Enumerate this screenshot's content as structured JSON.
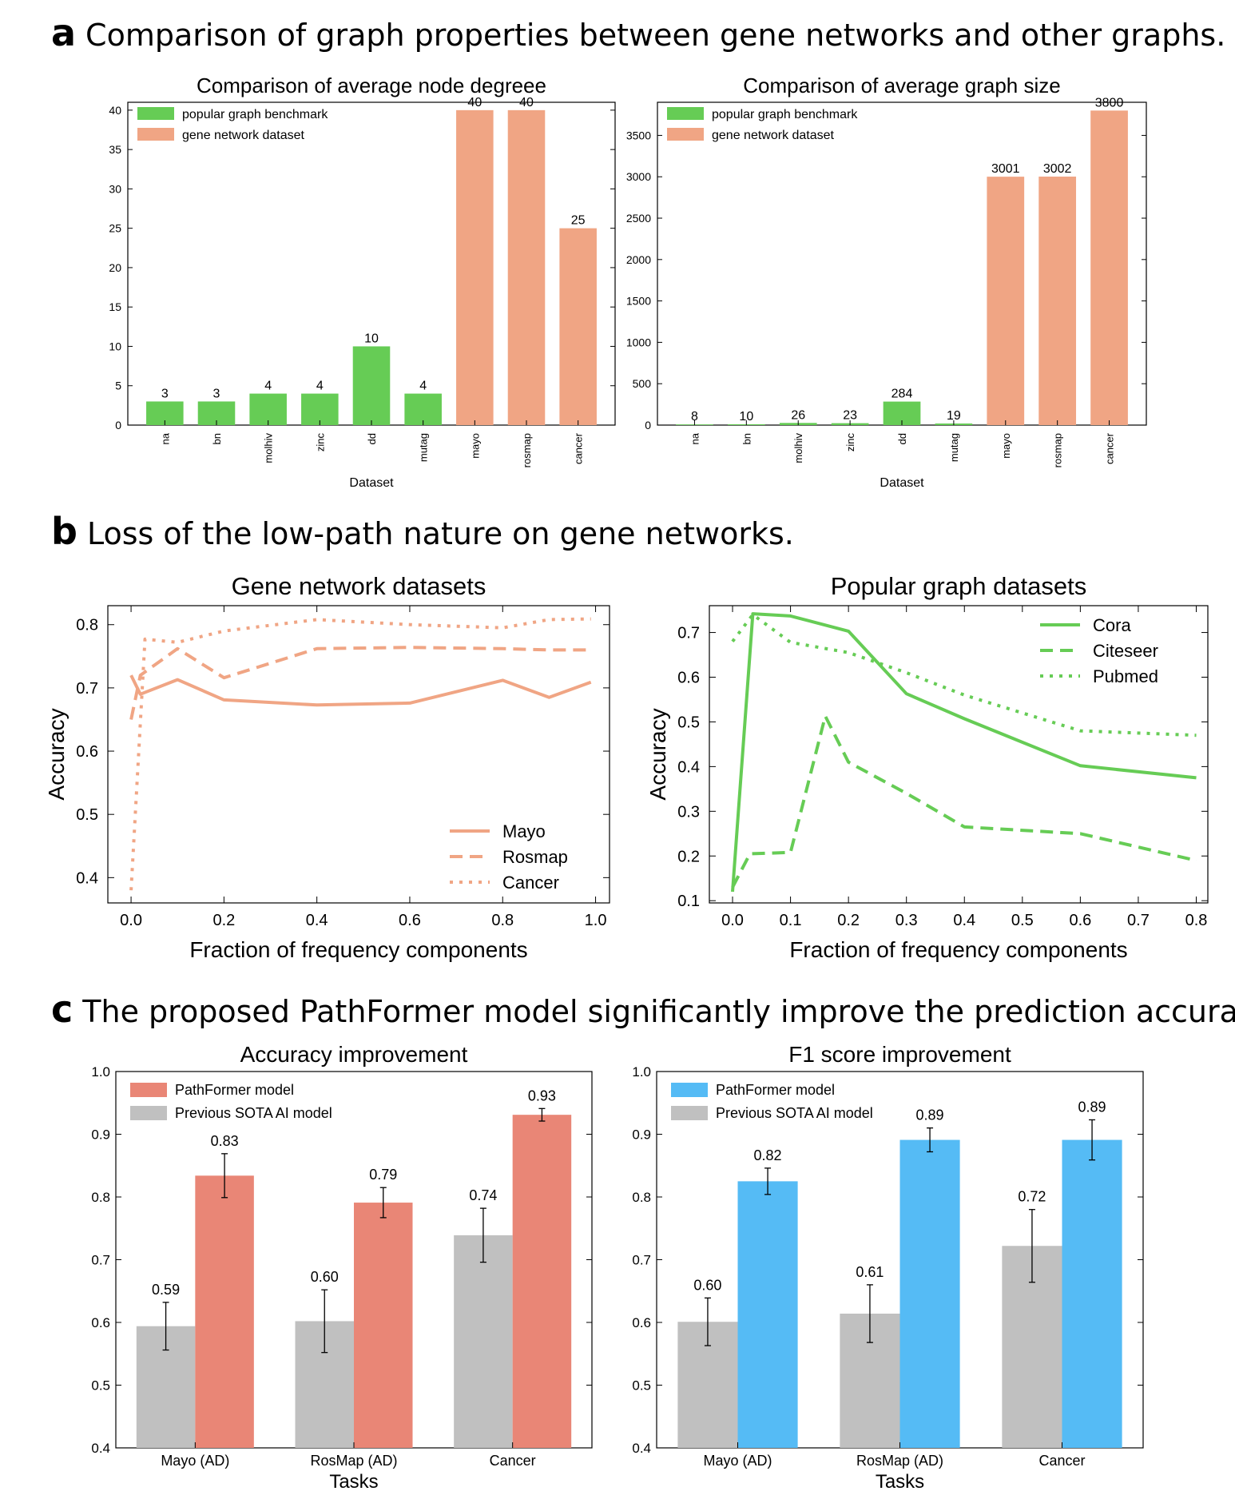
{
  "sections": {
    "a": {
      "letter": "a",
      "title": "Comparison of graph properties between gene networks and other graphs."
    },
    "b": {
      "letter": "b",
      "title": "Loss of the low-path nature on gene networks."
    },
    "c": {
      "letter": "c",
      "title": "The proposed PathFormer model significantly improve the prediction accuracy."
    }
  },
  "colors": {
    "green_bar": "#66cc55",
    "salmon_bar": "#f0a584",
    "salmon_line": "#f0a584",
    "green_line": "#66cc55",
    "red_bar": "#e98676",
    "blue_bar": "#55bbf5",
    "gray_bar": "#c0c0c0"
  },
  "chart_data": [
    {
      "id": "a1",
      "type": "bar",
      "title": "Comparison of average node degreee",
      "xlabel": "Dataset",
      "ylabel": "",
      "categories": [
        "na",
        "bn",
        "molhiv",
        "zinc",
        "dd",
        "mutag",
        "mayo",
        "rosmap",
        "cancer"
      ],
      "values": [
        3,
        3,
        4,
        4,
        10,
        4,
        40,
        40,
        25
      ],
      "value_labels": [
        "3",
        "3",
        "4",
        "4",
        "10",
        "4",
        "40",
        "40",
        "25"
      ],
      "groups": [
        "benchmark",
        "benchmark",
        "benchmark",
        "benchmark",
        "benchmark",
        "benchmark",
        "gene",
        "gene",
        "gene"
      ],
      "ylim": [
        0,
        41
      ],
      "yticks": [
        0,
        5,
        10,
        15,
        20,
        25,
        30,
        35,
        40
      ],
      "legend": [
        {
          "key": "benchmark",
          "label": "popular graph benchmark"
        },
        {
          "key": "gene",
          "label": "gene network dataset"
        }
      ],
      "legend_position": "top-left"
    },
    {
      "id": "a2",
      "type": "bar",
      "title": "Comparison of average graph size",
      "xlabel": "Dataset",
      "ylabel": "",
      "categories": [
        "na",
        "bn",
        "molhiv",
        "zinc",
        "dd",
        "mutag",
        "mayo",
        "rosmap",
        "cancer"
      ],
      "values": [
        8,
        10,
        26,
        23,
        284,
        19,
        3001,
        3002,
        3800
      ],
      "value_labels": [
        "8",
        "10",
        "26",
        "23",
        "284",
        "19",
        "3001",
        "3002",
        "3800"
      ],
      "groups": [
        "benchmark",
        "benchmark",
        "benchmark",
        "benchmark",
        "benchmark",
        "benchmark",
        "gene",
        "gene",
        "gene"
      ],
      "ylim": [
        0,
        3900
      ],
      "yticks": [
        0,
        500,
        1000,
        1500,
        2000,
        2500,
        3000,
        3500
      ],
      "legend": [
        {
          "key": "benchmark",
          "label": "popular graph benchmark"
        },
        {
          "key": "gene",
          "label": "gene network dataset"
        }
      ],
      "legend_position": "top-left"
    },
    {
      "id": "b1",
      "type": "line",
      "title": "Gene network datasets",
      "xlabel": "Fraction of frequency components",
      "ylabel": "Accuracy",
      "xlim": [
        -0.05,
        1.03
      ],
      "ylim": [
        0.36,
        0.83
      ],
      "xticks": [
        0.0,
        0.2,
        0.4,
        0.6,
        0.8,
        1.0
      ],
      "xtick_labels": [
        "0.0",
        "0.2",
        "0.4",
        "0.6",
        "0.8",
        "1.0"
      ],
      "yticks": [
        0.4,
        0.5,
        0.6,
        0.7,
        0.8
      ],
      "ytick_labels": [
        "0.4",
        "0.5",
        "0.6",
        "0.7",
        "0.8"
      ],
      "series": [
        {
          "name": "Mayo",
          "style": "solid",
          "x": [
            0.0,
            0.02,
            0.1,
            0.2,
            0.4,
            0.6,
            0.8,
            0.9,
            0.99
          ],
          "y": [
            0.72,
            0.69,
            0.713,
            0.681,
            0.673,
            0.676,
            0.712,
            0.685,
            0.709
          ]
        },
        {
          "name": "Rosmap",
          "style": "dashed",
          "x": [
            0.0,
            0.02,
            0.1,
            0.2,
            0.4,
            0.6,
            0.8,
            0.9,
            0.99
          ],
          "y": [
            0.65,
            0.72,
            0.762,
            0.716,
            0.762,
            0.764,
            0.762,
            0.76,
            0.76
          ]
        },
        {
          "name": "Cancer",
          "style": "dotted",
          "x": [
            0.0,
            0.03,
            0.1,
            0.2,
            0.4,
            0.6,
            0.8,
            0.9,
            0.99
          ],
          "y": [
            0.38,
            0.777,
            0.772,
            0.79,
            0.808,
            0.8,
            0.795,
            0.808,
            0.809
          ]
        }
      ],
      "legend_position": "bottom-right"
    },
    {
      "id": "b2",
      "type": "line",
      "title": "Popular graph datasets",
      "xlabel": "Fraction of frequency components",
      "ylabel": "Accuracy",
      "xlim": [
        -0.04,
        0.82
      ],
      "ylim": [
        0.095,
        0.76
      ],
      "xticks": [
        0.0,
        0.1,
        0.2,
        0.3,
        0.4,
        0.5,
        0.6,
        0.7,
        0.8
      ],
      "xtick_labels": [
        "0.0",
        "0.1",
        "0.2",
        "0.3",
        "0.4",
        "0.5",
        "0.6",
        "0.7",
        "0.8"
      ],
      "yticks": [
        0.1,
        0.2,
        0.3,
        0.4,
        0.5,
        0.6,
        0.7
      ],
      "ytick_labels": [
        "0.1",
        "0.2",
        "0.3",
        "0.4",
        "0.5",
        "0.6",
        "0.7"
      ],
      "series": [
        {
          "name": "Cora",
          "style": "solid",
          "x": [
            0.0,
            0.035,
            0.1,
            0.2,
            0.3,
            0.4,
            0.6,
            0.8
          ],
          "y": [
            0.12,
            0.742,
            0.737,
            0.703,
            0.563,
            0.507,
            0.402,
            0.375
          ]
        },
        {
          "name": "Citeseer",
          "style": "dashed",
          "x": [
            0.0,
            0.03,
            0.1,
            0.16,
            0.2,
            0.3,
            0.4,
            0.6,
            0.8
          ],
          "y": [
            0.13,
            0.205,
            0.208,
            0.513,
            0.41,
            0.34,
            0.265,
            0.25,
            0.19
          ]
        },
        {
          "name": "Pubmed",
          "style": "dotted",
          "x": [
            0.0,
            0.035,
            0.1,
            0.2,
            0.3,
            0.4,
            0.6,
            0.8
          ],
          "y": [
            0.68,
            0.74,
            0.678,
            0.655,
            0.61,
            0.56,
            0.48,
            0.47
          ]
        }
      ],
      "legend_position": "top-right"
    },
    {
      "id": "c1",
      "type": "bar",
      "title": "Accuracy improvement",
      "xlabel": "Tasks",
      "ylabel": "",
      "categories": [
        "Mayo (AD)",
        "RosMap (AD)",
        "Cancer"
      ],
      "ylim": [
        0.4,
        1.0
      ],
      "yticks": [
        0.4,
        0.5,
        0.6,
        0.7,
        0.8,
        0.9,
        1.0
      ],
      "ytick_labels": [
        "0.4",
        "0.5",
        "0.6",
        "0.7",
        "0.8",
        "0.9",
        "1.0"
      ],
      "series": [
        {
          "name": "Previous SOTA AI model",
          "key": "gray",
          "values": [
            0.594,
            0.602,
            0.739
          ],
          "errors": [
            0.038,
            0.05,
            0.043
          ],
          "value_labels": [
            "0.59",
            "0.60",
            "0.74"
          ]
        },
        {
          "name": "PathFormer model",
          "key": "red",
          "values": [
            0.834,
            0.791,
            0.931
          ],
          "errors": [
            0.035,
            0.024,
            0.01
          ],
          "value_labels": [
            "0.83",
            "0.79",
            "0.93"
          ]
        }
      ],
      "legend_order": [
        "PathFormer model",
        "Previous SOTA AI model"
      ],
      "legend_position": "top-left"
    },
    {
      "id": "c2",
      "type": "bar",
      "title": "F1 score improvement",
      "xlabel": "Tasks",
      "ylabel": "",
      "categories": [
        "Mayo (AD)",
        "RosMap (AD)",
        "Cancer"
      ],
      "ylim": [
        0.4,
        1.0
      ],
      "yticks": [
        0.4,
        0.5,
        0.6,
        0.7,
        0.8,
        0.9,
        1.0
      ],
      "ytick_labels": [
        "0.4",
        "0.5",
        "0.6",
        "0.7",
        "0.8",
        "0.9",
        "1.0"
      ],
      "series": [
        {
          "name": "Previous SOTA AI model",
          "key": "gray",
          "values": [
            0.601,
            0.614,
            0.722
          ],
          "errors": [
            0.038,
            0.046,
            0.058
          ],
          "value_labels": [
            "0.60",
            "0.61",
            "0.72"
          ]
        },
        {
          "name": "PathFormer model",
          "key": "blue",
          "values": [
            0.825,
            0.891,
            0.891
          ],
          "errors": [
            0.021,
            0.019,
            0.032
          ],
          "value_labels": [
            "0.82",
            "0.89",
            "0.89"
          ]
        }
      ],
      "legend_order": [
        "PathFormer model",
        "Previous SOTA AI model"
      ],
      "legend_position": "top-left"
    }
  ]
}
